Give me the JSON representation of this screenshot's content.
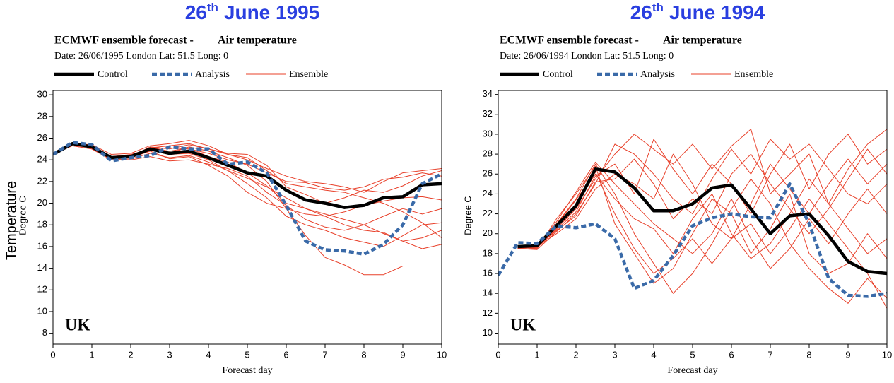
{
  "chart_data": [
    {
      "type": "line",
      "title_number": "26",
      "title_suffix": "th",
      "title_rest": "June 1995",
      "subtitle": "ECMWF ensemble forecast -",
      "variable": "Air temperature",
      "date_line": "Date: 26/06/1995 London Lat: 51.5 Long: 0",
      "annotation": "UK",
      "x_label": "Forecast day",
      "y_label": "Degree C",
      "axis_title": "Temperature",
      "x": [
        0,
        0.5,
        1,
        1.5,
        2,
        2.5,
        3,
        3.5,
        4,
        4.5,
        5,
        5.5,
        6,
        6.5,
        7,
        7.5,
        8,
        8.5,
        9,
        9.5,
        10
      ],
      "xlim": [
        0,
        10
      ],
      "xticks": [
        0,
        1,
        2,
        3,
        4,
        5,
        6,
        7,
        8,
        9,
        10
      ],
      "ylim": [
        7,
        30.4
      ],
      "yticks": [
        8,
        10,
        12,
        14,
        16,
        18,
        20,
        22,
        24,
        26,
        28,
        30
      ],
      "series": [
        {
          "name": "Control",
          "color": "#000000",
          "values": [
            24.5,
            25.5,
            25.2,
            24.2,
            24.3,
            25.0,
            24.6,
            24.8,
            24.2,
            23.5,
            22.8,
            22.5,
            21.2,
            20.3,
            20.0,
            19.6,
            19.8,
            20.5,
            20.6,
            21.7,
            21.8
          ]
        },
        {
          "name": "Analysis",
          "color": "#3a6aa8",
          "values": [
            24.5,
            25.6,
            25.4,
            23.9,
            24.2,
            24.4,
            25.2,
            25.0,
            25.0,
            23.6,
            23.8,
            22.8,
            19.8,
            16.5,
            15.7,
            15.6,
            15.3,
            16.2,
            18.0,
            21.8,
            22.7
          ]
        },
        {
          "name": "Ensemble",
          "color": "#e8402a",
          "members": [
            [
              24.5,
              25.4,
              25.2,
              24.2,
              24.3,
              25.2,
              25.0,
              25.4,
              25.0,
              24.5,
              24.0,
              23.2,
              22.5,
              22.0,
              21.8,
              21.5,
              21.0,
              22.0,
              22.8,
              23.0,
              23.2
            ],
            [
              24.5,
              25.3,
              25.0,
              24.0,
              24.1,
              24.6,
              24.2,
              24.4,
              23.8,
              23.0,
              22.3,
              21.5,
              20.5,
              19.5,
              18.8,
              18.0,
              17.5,
              17.3,
              16.5,
              16.8,
              17.5
            ],
            [
              24.5,
              25.5,
              25.3,
              24.3,
              24.4,
              25.0,
              24.6,
              25.2,
              24.8,
              24.2,
              23.5,
              22.0,
              19.5,
              17.0,
              15.0,
              14.3,
              13.4,
              13.4,
              14.2,
              14.2,
              14.2
            ],
            [
              24.5,
              25.4,
              25.1,
              24.1,
              24.2,
              24.8,
              24.1,
              24.3,
              23.5,
              22.5,
              21.0,
              20.0,
              19.5,
              19.0,
              18.8,
              19.2,
              19.8,
              20.2,
              20.5,
              20.6,
              20.3
            ],
            [
              24.5,
              25.5,
              25.4,
              24.5,
              24.6,
              25.3,
              25.5,
              25.8,
              25.3,
              24.5,
              24.2,
              23.0,
              21.8,
              21.5,
              21.2,
              21.0,
              20.5,
              20.0,
              19.2,
              18.2,
              16.8
            ],
            [
              24.5,
              25.3,
              25.0,
              24.0,
              24.0,
              24.3,
              23.9,
              24.0,
              23.6,
              23.2,
              22.5,
              21.0,
              19.8,
              18.5,
              17.8,
              17.5,
              18.0,
              17.2,
              16.5,
              15.8,
              16.2
            ],
            [
              24.5,
              25.4,
              25.2,
              24.3,
              24.5,
              25.0,
              25.1,
              25.0,
              24.6,
              24.0,
              23.6,
              22.8,
              22.0,
              21.9,
              21.4,
              21.2,
              21.5,
              22.2,
              22.4,
              22.8,
              22.5
            ],
            [
              24.5,
              25.5,
              25.3,
              24.2,
              24.4,
              25.1,
              24.8,
              25.1,
              24.3,
              23.8,
              22.8,
              21.6,
              20.0,
              19.5,
              19.0,
              18.5,
              18.0,
              18.8,
              19.5,
              19.0,
              19.5
            ],
            [
              24.5,
              25.4,
              25.2,
              24.1,
              24.3,
              24.9,
              24.5,
              24.6,
              24.0,
              23.0,
              21.8,
              20.5,
              18.8,
              18.0,
              17.5,
              16.8,
              16.4,
              16.0,
              17.0,
              18.0,
              18.2
            ],
            [
              24.5,
              25.5,
              25.3,
              24.3,
              24.4,
              25.1,
              25.3,
              25.5,
              25.0,
              24.6,
              24.5,
              23.5,
              21.5,
              20.8,
              20.0,
              20.5,
              21.2,
              21.0,
              21.6,
              22.5,
              23.0
            ]
          ]
        }
      ]
    },
    {
      "type": "line",
      "title_number": "26",
      "title_suffix": "th",
      "title_rest": "June 1994",
      "subtitle": "ECMWF ensemble forecast -",
      "variable": "Air temperature",
      "date_line": "Date: 26/06/1994 London Lat: 51.5 Long: 0",
      "annotation": "UK",
      "x_label": "Forecast day",
      "y_label": "Degree C",
      "x": [
        0,
        0.5,
        1,
        1.5,
        2,
        2.5,
        3,
        3.5,
        4,
        4.5,
        5,
        5.5,
        6,
        6.5,
        7,
        7.5,
        8,
        8.5,
        9,
        9.5,
        10
      ],
      "xlim": [
        0,
        10
      ],
      "xticks": [
        0,
        1,
        2,
        3,
        4,
        5,
        6,
        7,
        8,
        9,
        10
      ],
      "ylim": [
        8.9,
        34.4
      ],
      "yticks": [
        10,
        12,
        14,
        16,
        18,
        20,
        22,
        24,
        26,
        28,
        30,
        32,
        34
      ],
      "series": [
        {
          "name": "Control",
          "color": "#000000",
          "values": [
            null,
            18.7,
            18.8,
            20.8,
            22.8,
            26.5,
            26.2,
            24.6,
            22.3,
            22.3,
            23.0,
            24.6,
            24.9,
            22.5,
            20.0,
            21.8,
            22.0,
            19.8,
            17.2,
            16.2,
            16.0
          ]
        },
        {
          "name": "Analysis",
          "color": "#3a6aa8",
          "values": [
            15.8,
            19.1,
            19.0,
            20.8,
            20.6,
            21.0,
            19.5,
            14.5,
            15.3,
            17.8,
            20.8,
            21.6,
            22.0,
            21.7,
            21.6,
            25.0,
            21.0,
            15.5,
            13.8,
            13.7,
            14.0
          ]
        },
        {
          "name": "Ensemble",
          "color": "#e8402a",
          "members": [
            [
              null,
              18.5,
              18.6,
              20.5,
              22.5,
              25.5,
              28.0,
              30.0,
              28.5,
              27.0,
              29.0,
              26.5,
              28.8,
              30.5,
              24.0,
              26.0,
              28.0,
              23.0,
              26.5,
              29.0,
              30.5
            ],
            [
              null,
              18.6,
              18.5,
              21.5,
              24.0,
              26.8,
              21.0,
              18.0,
              15.0,
              16.5,
              20.0,
              23.5,
              22.0,
              18.0,
              20.5,
              24.0,
              18.0,
              16.0,
              17.0,
              20.0,
              17.5
            ],
            [
              null,
              18.5,
              18.7,
              20.0,
              21.5,
              24.5,
              26.0,
              25.0,
              23.5,
              28.0,
              25.0,
              21.0,
              19.5,
              23.0,
              27.0,
              24.5,
              22.0,
              25.0,
              27.5,
              25.0,
              27.0
            ],
            [
              null,
              18.6,
              18.9,
              21.0,
              23.5,
              27.0,
              24.0,
              20.0,
              17.0,
              14.0,
              16.0,
              19.0,
              22.5,
              25.5,
              23.0,
              19.0,
              16.5,
              14.5,
              13.0,
              15.5,
              13.5
            ],
            [
              null,
              18.5,
              18.4,
              20.2,
              22.0,
              25.0,
              29.0,
              28.0,
              26.0,
              23.5,
              22.0,
              25.5,
              28.5,
              26.0,
              29.5,
              27.5,
              29.0,
              26.5,
              24.0,
              23.0,
              25.0
            ],
            [
              null,
              18.7,
              18.8,
              20.6,
              23.0,
              26.0,
              23.5,
              21.5,
              20.5,
              18.0,
              21.5,
              24.0,
              20.0,
              17.5,
              19.0,
              22.0,
              25.5,
              23.0,
              20.5,
              18.0,
              19.5
            ],
            [
              null,
              18.5,
              18.6,
              20.4,
              22.2,
              25.8,
              27.0,
              24.0,
              29.5,
              26.5,
              24.0,
              27.0,
              25.0,
              22.0,
              26.0,
              29.0,
              24.5,
              28.0,
              30.0,
              27.0,
              28.5
            ],
            [
              null,
              18.6,
              18.5,
              20.9,
              23.4,
              26.2,
              22.0,
              18.5,
              16.0,
              17.5,
              19.5,
              17.0,
              19.5,
              21.0,
              18.0,
              20.5,
              23.5,
              21.0,
              18.5,
              16.0,
              12.5
            ],
            [
              null,
              18.5,
              18.7,
              20.3,
              21.8,
              25.2,
              25.5,
              27.5,
              25.0,
              21.5,
              23.5,
              22.0,
              26.0,
              28.0,
              25.0,
              22.5,
              20.0,
              22.5,
              25.5,
              28.5,
              26.0
            ],
            [
              null,
              18.6,
              18.8,
              21.2,
              24.2,
              27.2,
              25.0,
              23.0,
              21.0,
              19.5,
              18.0,
              20.0,
              23.5,
              19.5,
              16.5,
              18.5,
              21.5,
              19.0,
              22.0,
              24.5,
              22.0
            ]
          ]
        }
      ]
    }
  ]
}
